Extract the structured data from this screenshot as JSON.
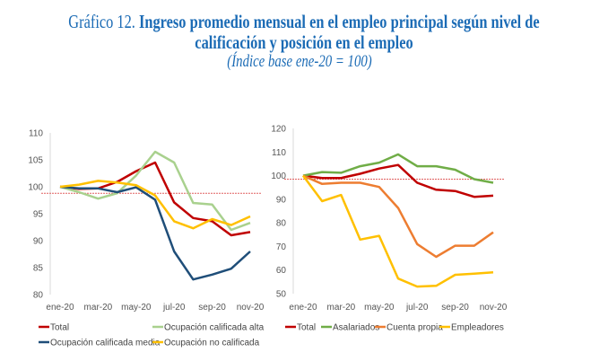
{
  "title": {
    "prefix": "Gráfico 12.",
    "line1": "Ingreso promedio mensual en el empleo principal según nivel de",
    "line2": "calificación y posición en el empleo",
    "subtitle": "(Índice base ene-20 = 100)"
  },
  "chart_data": [
    {
      "type": "line",
      "months": [
        "ene-20",
        "feb-20",
        "mar-20",
        "abr-20",
        "may-20",
        "jun-20",
        "jul-20",
        "ago-20",
        "sep-20",
        "oct-20",
        "nov-20"
      ],
      "x_tick_labels": [
        "ene-20",
        "mar-20",
        "may-20",
        "jul-20",
        "sep-20",
        "nov-20"
      ],
      "ylim": [
        80,
        110
      ],
      "y_ticks": [
        "80",
        "85",
        "90",
        "95",
        "100",
        "105",
        "110"
      ],
      "reference_line": 98.8,
      "legend_position": "bottom",
      "series": [
        {
          "name": "Total",
          "color": "#c00000",
          "values": [
            100,
            99.6,
            99.7,
            100.9,
            102.9,
            104.5,
            97.1,
            94.2,
            93.6,
            91.0,
            91.6
          ]
        },
        {
          "name": "Ocupación calificada alta",
          "color": "#a9d18e",
          "values": [
            100,
            99.0,
            97.8,
            98.8,
            102.1,
            106.5,
            104.5,
            97.0,
            96.7,
            92.0,
            93.3
          ]
        },
        {
          "name": "Ocupación calificada media",
          "color": "#1f4e79",
          "values": [
            100,
            99.7,
            99.7,
            99.0,
            99.9,
            97.6,
            88.0,
            82.8,
            83.7,
            84.8,
            88.0
          ]
        },
        {
          "name": "Ocupación no calificada",
          "color": "#ffc000",
          "values": [
            100,
            100.4,
            101.1,
            100.8,
            100.3,
            98.4,
            93.6,
            92.3,
            94.0,
            92.9,
            94.5
          ]
        }
      ]
    },
    {
      "type": "line",
      "months": [
        "ene-20",
        "feb-20",
        "mar-20",
        "abr-20",
        "may-20",
        "jun-20",
        "jul-20",
        "ago-20",
        "sep-20",
        "oct-20",
        "nov-20"
      ],
      "x_tick_labels": [
        "ene-20",
        "mar-20",
        "may-20",
        "jul-20",
        "sep-20",
        "nov-20"
      ],
      "ylim": [
        50,
        120
      ],
      "y_ticks": [
        "50",
        "60",
        "70",
        "80",
        "90",
        "100",
        "110",
        "120"
      ],
      "reference_line": 98.5,
      "legend_position": "bottom",
      "series": [
        {
          "name": "Total",
          "color": "#c00000",
          "values": [
            100,
            99.0,
            99.0,
            100.8,
            103.0,
            104.5,
            97.0,
            94.0,
            93.5,
            91.0,
            91.5
          ]
        },
        {
          "name": "Asalariados",
          "color": "#70ad47",
          "values": [
            100,
            101.5,
            101.2,
            104.0,
            105.5,
            109.0,
            104.0,
            104.0,
            102.5,
            98.5,
            97.0
          ]
        },
        {
          "name": "Cuenta propia",
          "color": "#ed7d31",
          "values": [
            100,
            96.5,
            97.0,
            97.0,
            95.2,
            86.3,
            71.0,
            65.6,
            70.3,
            70.3,
            76.0
          ]
        },
        {
          "name": "Empleadores",
          "color": "#ffc000",
          "values": [
            100,
            89.2,
            91.8,
            72.9,
            74.5,
            56.4,
            53.0,
            53.3,
            58.0,
            58.5,
            59.0
          ]
        }
      ]
    }
  ]
}
